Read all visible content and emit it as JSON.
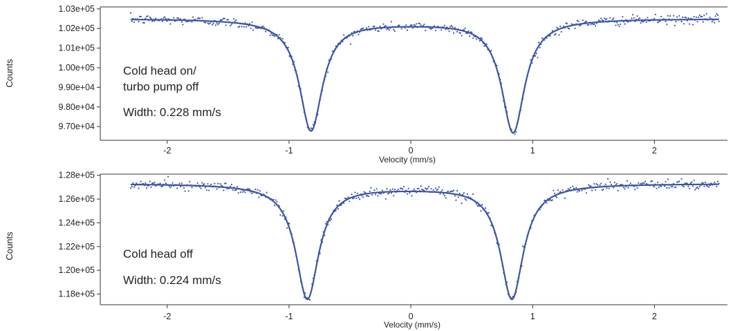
{
  "chart_data": [
    {
      "type": "scatter",
      "title": "",
      "xlabel": "Velocity (mm/s)",
      "ylabel": "Counts",
      "xlim": [
        -2.55,
        2.6
      ],
      "ylim": [
        96300,
        103100
      ],
      "x_ticks": [
        -2,
        -1,
        0,
        1,
        2
      ],
      "y_ticks": [
        97000,
        98000,
        99000,
        100000,
        101000,
        102000,
        103000
      ],
      "x_tick_labels": [
        "-2",
        "-1",
        "0",
        "1",
        "2"
      ],
      "y_tick_labels": [
        "9.70e+04",
        "9.80e+04",
        "9.90e+04",
        "1.00e+05",
        "1.01e+05",
        "1.02e+05",
        "1.03e+05"
      ],
      "annotations": [
        "Cold head on/",
        "turbo pump off",
        "Width: 0.228 mm/s"
      ],
      "grid": false,
      "series": [
        {
          "kind": "scatter",
          "x_range": [
            -2.3,
            2.53
          ],
          "n_points": 520,
          "noise_std": 120
        },
        {
          "kind": "line-fit",
          "model": "baseline with two Lorentzian dips",
          "baseline_left": 102500,
          "baseline_right": 102500,
          "center_level": 102300,
          "peaks": [
            {
              "center": -0.82,
              "min": 96800
            },
            {
              "center": 0.84,
              "min": 96700
            }
          ]
        }
      ]
    },
    {
      "type": "scatter",
      "title": "",
      "xlabel": "Velocity (mm/s)",
      "ylabel": "Counts",
      "xlim": [
        -2.55,
        2.6
      ],
      "ylim": [
        117100,
        128100
      ],
      "x_ticks": [
        -2,
        -1,
        0,
        1,
        2
      ],
      "y_ticks": [
        118000,
        120000,
        122000,
        124000,
        126000,
        128000
      ],
      "x_tick_labels": [
        "-2",
        "-1",
        "0",
        "1",
        "2"
      ],
      "y_tick_labels": [
        "1.18e+05",
        "1.20e+05",
        "1.22e+05",
        "1.24e+05",
        "1.26e+05",
        "1.28e+05"
      ],
      "annotations": [
        "Cold head off",
        "Width: 0.224 mm/s"
      ],
      "grid": false,
      "series": [
        {
          "kind": "scatter",
          "x_range": [
            -2.3,
            2.53
          ],
          "n_points": 520,
          "noise_std": 200
        },
        {
          "kind": "line-fit",
          "model": "baseline with two Lorentzian dips",
          "baseline_left": 127300,
          "baseline_right": 127300,
          "center_level": 127000,
          "peaks": [
            {
              "center": -0.85,
              "min": 117600
            },
            {
              "center": 0.83,
              "min": 117600
            }
          ]
        }
      ]
    }
  ],
  "style": {
    "data_color": "#3b55a5",
    "axis_color": "#333333"
  }
}
